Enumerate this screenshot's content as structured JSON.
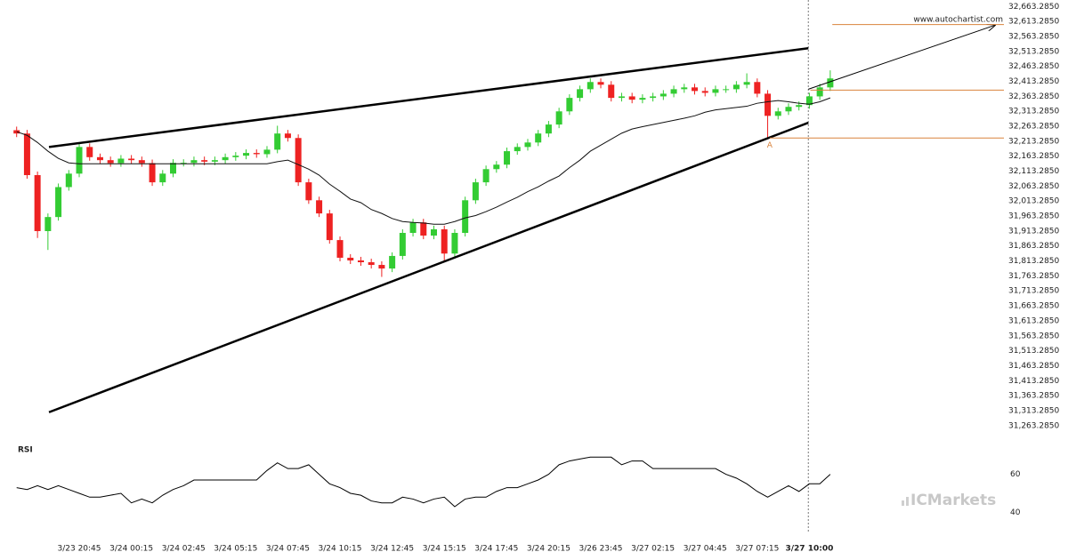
{
  "chart_data": {
    "type": "candlestick",
    "site": "www.autochartist.com",
    "watermark": "ICMarkets",
    "up_color": "#33cc33",
    "down_color": "#ee2222",
    "level_color": "#d9823b",
    "categories": [
      null,
      null,
      null,
      null,
      null,
      null,
      "3/23 20:45",
      null,
      null,
      null,
      null,
      "3/24 00:15",
      null,
      null,
      null,
      null,
      "3/24 02:45",
      null,
      null,
      null,
      null,
      "3/24 05:15",
      null,
      null,
      null,
      null,
      "3/24 07:45",
      null,
      null,
      null,
      null,
      "3/24 10:15",
      null,
      null,
      null,
      null,
      "3/24 12:45",
      null,
      null,
      null,
      null,
      "3/24 15:15",
      null,
      null,
      null,
      null,
      "3/24 17:45",
      null,
      null,
      null,
      null,
      "3/24 20:15",
      null,
      null,
      null,
      null,
      "3/26 23:45",
      null,
      null,
      null,
      null,
      "3/27 02:15",
      null,
      null,
      null,
      null,
      "3/27 04:45",
      null,
      null,
      null,
      null,
      "3/27 07:15",
      null,
      null,
      null,
      null,
      "3/27 10:00",
      null,
      null
    ],
    "ohlc": [
      [
        32250,
        32262,
        32227,
        32239
      ],
      [
        32239,
        32251,
        32088,
        32100
      ],
      [
        32100,
        32112,
        31890,
        31913
      ],
      [
        31913,
        31972,
        31850,
        31960
      ],
      [
        31960,
        32072,
        31948,
        32060
      ],
      [
        32060,
        32117,
        32048,
        32105
      ],
      [
        32105,
        32210,
        32093,
        32194
      ],
      [
        32194,
        32206,
        32148,
        32160
      ],
      [
        32160,
        32172,
        32138,
        32150
      ],
      [
        32150,
        32162,
        32128,
        32140
      ],
      [
        32140,
        32167,
        32128,
        32155
      ],
      [
        32155,
        32167,
        32138,
        32150
      ],
      [
        32150,
        32162,
        32128,
        32140
      ],
      [
        32140,
        32152,
        32064,
        32076
      ],
      [
        32076,
        32117,
        32064,
        32105
      ],
      [
        32105,
        32153,
        32093,
        32141
      ],
      [
        32141,
        32153,
        32129,
        32141
      ],
      [
        32141,
        32162,
        32129,
        32150
      ],
      [
        32150,
        32162,
        32133,
        32145
      ],
      [
        32145,
        32162,
        32133,
        32150
      ],
      [
        32150,
        32172,
        32138,
        32160
      ],
      [
        32160,
        32177,
        32148,
        32165
      ],
      [
        32165,
        32186,
        32153,
        32174
      ],
      [
        32174,
        32186,
        32158,
        32170
      ],
      [
        32170,
        32197,
        32158,
        32185
      ],
      [
        32185,
        32265,
        32173,
        32239
      ],
      [
        32239,
        32251,
        32212,
        32224
      ],
      [
        32224,
        32236,
        32064,
        32076
      ],
      [
        32076,
        32088,
        32004,
        32016
      ],
      [
        32016,
        32028,
        31960,
        31972
      ],
      [
        31972,
        31984,
        31871,
        31883
      ],
      [
        31883,
        31895,
        31812,
        31824
      ],
      [
        31824,
        31836,
        31803,
        31815
      ],
      [
        31815,
        31827,
        31797,
        31809
      ],
      [
        31809,
        31821,
        31788,
        31800
      ],
      [
        31800,
        31812,
        31760,
        31788
      ],
      [
        31788,
        31842,
        31776,
        31830
      ],
      [
        31830,
        31919,
        31818,
        31907
      ],
      [
        31907,
        31954,
        31895,
        31942
      ],
      [
        31942,
        31954,
        31886,
        31898
      ],
      [
        31898,
        31931,
        31886,
        31919
      ],
      [
        31919,
        31931,
        31815,
        31838
      ],
      [
        31838,
        31919,
        31826,
        31907
      ],
      [
        31907,
        32028,
        31895,
        32016
      ],
      [
        32016,
        32088,
        32004,
        32076
      ],
      [
        32076,
        32132,
        32064,
        32120
      ],
      [
        32120,
        32147,
        32108,
        32135
      ],
      [
        32135,
        32192,
        32123,
        32180
      ],
      [
        32180,
        32206,
        32168,
        32194
      ],
      [
        32194,
        32221,
        32182,
        32209
      ],
      [
        32209,
        32251,
        32197,
        32239
      ],
      [
        32239,
        32281,
        32227,
        32269
      ],
      [
        32269,
        32325,
        32257,
        32313
      ],
      [
        32313,
        32370,
        32301,
        32358
      ],
      [
        32358,
        32399,
        32346,
        32387
      ],
      [
        32387,
        32423,
        32375,
        32411
      ],
      [
        32411,
        32423,
        32390,
        32402
      ],
      [
        32402,
        32414,
        32346,
        32358
      ],
      [
        32358,
        32375,
        32346,
        32363
      ],
      [
        32363,
        32375,
        32340,
        32352
      ],
      [
        32352,
        32370,
        32340,
        32358
      ],
      [
        32358,
        32375,
        32346,
        32363
      ],
      [
        32363,
        32384,
        32351,
        32372
      ],
      [
        32372,
        32399,
        32360,
        32387
      ],
      [
        32387,
        32405,
        32375,
        32393
      ],
      [
        32393,
        32405,
        32369,
        32381
      ],
      [
        32381,
        32393,
        32363,
        32375
      ],
      [
        32375,
        32399,
        32363,
        32387
      ],
      [
        32387,
        32399,
        32375,
        32387
      ],
      [
        32387,
        32414,
        32375,
        32402
      ],
      [
        32402,
        32440,
        32390,
        32411
      ],
      [
        32411,
        32423,
        32360,
        32372
      ],
      [
        32372,
        32384,
        32220,
        32298
      ],
      [
        32298,
        32325,
        32286,
        32313
      ],
      [
        32313,
        32340,
        32301,
        32328
      ],
      [
        32328,
        32346,
        32316,
        32334
      ],
      [
        32334,
        32375,
        32322,
        32363
      ],
      [
        32363,
        32405,
        32351,
        32393
      ],
      [
        32393,
        32450,
        32381,
        32423
      ]
    ],
    "ma": {
      "color": "#111111",
      "values": [
        32245,
        32233,
        32209,
        32180,
        32156,
        32141,
        32138,
        32138,
        32138,
        32138,
        32138,
        32138,
        32138,
        32138,
        32138,
        32138,
        32138,
        32138,
        32138,
        32138,
        32138,
        32138,
        32138,
        32138,
        32138,
        32145,
        32150,
        32135,
        32120,
        32100,
        32070,
        32046,
        32020,
        32008,
        31985,
        31972,
        31955,
        31945,
        31942,
        31940,
        31936,
        31936,
        31945,
        31957,
        31965,
        31978,
        31993,
        32010,
        32026,
        32045,
        32061,
        32080,
        32097,
        32125,
        32150,
        32180,
        32200,
        32220,
        32240,
        32254,
        32262,
        32269,
        32276,
        32283,
        32290,
        32298,
        32310,
        32318,
        32322,
        32326,
        32330,
        32340,
        32345,
        32349,
        32345,
        32340,
        32337,
        32345,
        32358
      ]
    },
    "ylim": [
      31230,
      32685
    ],
    "yticks": [
      {
        "value": 31263.285,
        "label": "31,263.2850"
      },
      {
        "value": 31313.285,
        "label": "31,313.2850"
      },
      {
        "value": 31363.285,
        "label": "31,363.2850"
      },
      {
        "value": 31413.285,
        "label": "31,413.2850"
      },
      {
        "value": 31463.285,
        "label": "31,463.2850"
      },
      {
        "value": 31513.285,
        "label": "31,513.2850"
      },
      {
        "value": 31563.285,
        "label": "31,563.2850"
      },
      {
        "value": 31613.285,
        "label": "31,613.2850"
      },
      {
        "value": 31663.285,
        "label": "31,663.2850"
      },
      {
        "value": 31713.285,
        "label": "31,713.2850"
      },
      {
        "value": 31763.285,
        "label": "31,763.2850"
      },
      {
        "value": 31813.285,
        "label": "31,813.2850"
      },
      {
        "value": 31863.285,
        "label": "31,863.2850"
      },
      {
        "value": 31913.285,
        "label": "31,913.2850"
      },
      {
        "value": 31963.285,
        "label": "31,963.2850"
      },
      {
        "value": 32013.285,
        "label": "32,013.2850"
      },
      {
        "value": 32063.285,
        "label": "32,063.2850"
      },
      {
        "value": 32113.285,
        "label": "32,113.2850"
      },
      {
        "value": 32163.285,
        "label": "32,163.2850"
      },
      {
        "value": 32213.285,
        "label": "32,213.2850"
      },
      {
        "value": 32263.285,
        "label": "32,263.2850"
      },
      {
        "value": 32313.285,
        "label": "32,313.2850"
      },
      {
        "value": 32363.285,
        "label": "32,363.2850"
      },
      {
        "value": 32413.285,
        "label": "32,413.2850"
      },
      {
        "value": 32463.285,
        "label": "32,463.2850"
      },
      {
        "value": 32513.285,
        "label": "32,513.2850"
      },
      {
        "value": 32563.285,
        "label": "32,563.2850"
      },
      {
        "value": 32613.285,
        "label": "32,613.2850"
      },
      {
        "value": 32663.285,
        "label": "32,663.2850"
      }
    ],
    "trendlines": [
      {
        "x": [
          3.1,
          75.9
        ],
        "y": [
          32194,
          32524
        ]
      },
      {
        "x": [
          3.1,
          75.9
        ],
        "y": [
          31308,
          32275
        ]
      }
    ],
    "forecast": {
      "x": [
        75.9,
        93.8
      ],
      "y": [
        32387,
        32601
      ]
    },
    "levels": [
      {
        "value": 32603,
        "start": 78.2
      },
      {
        "value": 32384,
        "start": 76.1
      },
      {
        "value": 32224,
        "start": 72.2,
        "label": "A"
      }
    ],
    "rsi": {
      "label": "RSI",
      "ylim": [
        29,
        78
      ],
      "yticks": [
        40,
        60
      ],
      "values": [
        53,
        52,
        54,
        52,
        54,
        52,
        50,
        48,
        48,
        49,
        50,
        45,
        47,
        45,
        49,
        52,
        54,
        57,
        57,
        57,
        57,
        57,
        57,
        57,
        62,
        66,
        63,
        63,
        65,
        60,
        55,
        53,
        50,
        49,
        46,
        45,
        45,
        48,
        47,
        45,
        47,
        48,
        43,
        47,
        48,
        48,
        51,
        53,
        53,
        55,
        57,
        60,
        65,
        67,
        68,
        69,
        69,
        69,
        65,
        67,
        67,
        63,
        63,
        63,
        63,
        63,
        63,
        63,
        60,
        58,
        55,
        51,
        48,
        51,
        54,
        51,
        55,
        55,
        60
      ]
    }
  }
}
